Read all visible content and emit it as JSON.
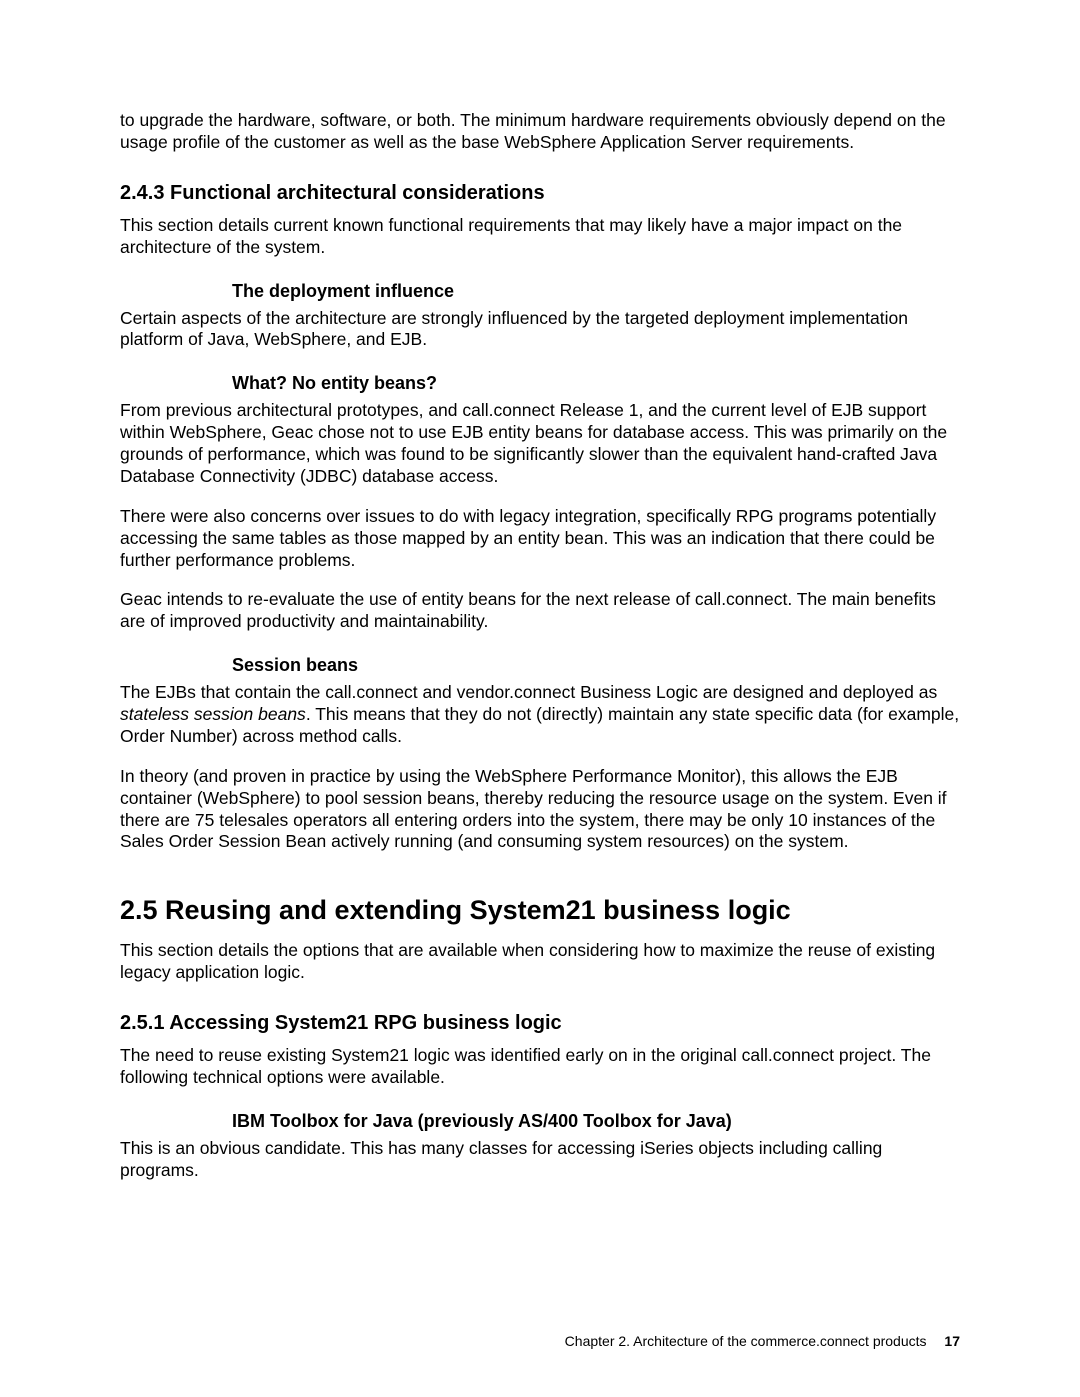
{
  "intro_para": "to upgrade the hardware, software, or both. The minimum hardware requirements obviously depend on the usage profile of the customer as well as the base WebSphere Application Server requirements.",
  "h243": "2.4.3  Functional architectural considerations",
  "h243_p1": "This section details current known functional requirements that may likely have a major impact on the architecture of the system.",
  "h_deploy": "The deployment influence",
  "p_deploy": "Certain aspects of the architecture are strongly influenced by the targeted deployment implementation platform of Java, WebSphere, and EJB.",
  "h_entity": "What? No entity beans?",
  "p_entity1": "From previous architectural prototypes, and call.connect Release 1, and the current level of EJB support within WebSphere, Geac chose not to use EJB entity beans for database access. This was primarily on the grounds of performance, which was found to be significantly slower than the equivalent hand-crafted Java Database Connectivity (JDBC) database access.",
  "p_entity2": "There were also concerns over issues to do with legacy integration, specifically RPG programs potentially accessing the same tables as those mapped by an entity bean. This was an indication that there could be further performance problems.",
  "p_entity3": "Geac intends to re-evaluate the use of entity beans for the next release of call.connect. The main benefits are of improved productivity and maintainability.",
  "h_session": "Session beans",
  "p_session1_a": "The EJBs that contain the call.connect and vendor.connect Business Logic are designed and deployed as ",
  "p_session1_em": "stateless session beans",
  "p_session1_b": ". This means that they do not (directly) maintain any state specific data (for example, Order Number) across method calls.",
  "p_session2": "In theory (and proven in practice by using the WebSphere Performance Monitor), this allows the EJB container (WebSphere) to pool session beans, thereby reducing the resource usage on the system. Even if there are 75 telesales operators all entering orders into the system, there may be only 10 instances of the Sales Order Session Bean actively running (and consuming system resources) on the system.",
  "h25": "2.5  Reusing and extending System21 business logic",
  "p25": "This section details the options that are available when considering how to maximize the reuse of existing legacy application logic.",
  "h251": "2.5.1  Accessing System21 RPG business logic",
  "p251": "The need to reuse existing System21 logic was identified early on in the original call.connect project. The following technical options were available.",
  "h_toolbox": "IBM Toolbox for Java (previously AS/400 Toolbox for Java)",
  "p_toolbox": "This is an obvious candidate. This has many classes for accessing iSeries objects including calling programs.",
  "footer_text": "Chapter 2. Architecture of the commerce.connect products",
  "footer_page": "17"
}
